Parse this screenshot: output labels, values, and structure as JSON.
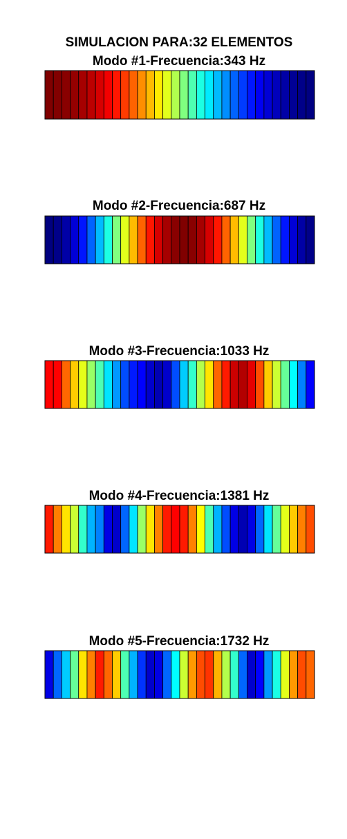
{
  "figure": {
    "title": "SIMULACION PARA:32 ELEMENTOS"
  },
  "chart_data": {
    "type": "heatmap",
    "elements": 32,
    "colormap": "jet",
    "clim": [
      -1,
      1
    ],
    "grid": false,
    "legend": "none",
    "modes": [
      {
        "mode": 1,
        "title": "Modo #1-Frecuencia:343 Hz",
        "frequency_hz": 343,
        "values": [
          1.0,
          0.995,
          0.981,
          0.957,
          0.924,
          0.882,
          0.831,
          0.773,
          0.707,
          0.634,
          0.556,
          0.471,
          0.383,
          0.29,
          0.195,
          0.098,
          0.0,
          -0.098,
          -0.195,
          -0.29,
          -0.383,
          -0.471,
          -0.556,
          -0.634,
          -0.707,
          -0.773,
          -0.831,
          -0.882,
          -0.924,
          -0.957,
          -0.981,
          -0.995
        ]
      },
      {
        "mode": 2,
        "title": "Modo #2-Frecuencia:687 Hz",
        "frequency_hz": 687,
        "values": [
          -1.0,
          -0.981,
          -0.924,
          -0.831,
          -0.707,
          -0.556,
          -0.383,
          -0.195,
          0.0,
          0.195,
          0.383,
          0.556,
          0.707,
          0.831,
          0.924,
          0.981,
          1.0,
          0.981,
          0.924,
          0.831,
          0.707,
          0.556,
          0.383,
          0.195,
          0.0,
          -0.195,
          -0.383,
          -0.556,
          -0.707,
          -0.831,
          -0.924,
          -0.981
        ]
      },
      {
        "mode": 3,
        "title": "Modo #3-Frecuencia:1033 Hz",
        "frequency_hz": 1033,
        "values": [
          0.75,
          0.75,
          0.55,
          0.35,
          0.2,
          0.05,
          -0.1,
          -0.3,
          -0.45,
          -0.6,
          -0.7,
          -0.75,
          -0.85,
          -0.9,
          -0.85,
          -0.6,
          -0.35,
          -0.15,
          0.1,
          0.3,
          0.55,
          0.7,
          0.85,
          0.9,
          0.8,
          0.6,
          0.35,
          0.15,
          -0.05,
          -0.25,
          -0.5,
          -0.75
        ]
      },
      {
        "mode": 4,
        "title": "Modo #4-Frecuencia:1381 Hz",
        "frequency_hz": 1381,
        "values": [
          0.7,
          0.5,
          0.3,
          0.15,
          -0.15,
          -0.4,
          -0.5,
          -0.8,
          -0.85,
          -0.55,
          -0.3,
          0.05,
          0.3,
          0.5,
          0.7,
          0.75,
          0.7,
          0.5,
          0.25,
          -0.1,
          -0.4,
          -0.6,
          -0.8,
          -0.9,
          -0.8,
          -0.55,
          -0.3,
          -0.05,
          0.2,
          0.35,
          0.5,
          0.6
        ]
      },
      {
        "mode": 5,
        "title": "Modo #5-Frecuencia:1732 Hz",
        "frequency_hz": 1732,
        "values": [
          -0.8,
          -0.55,
          -0.35,
          -0.05,
          0.3,
          0.5,
          0.7,
          0.55,
          0.35,
          -0.1,
          -0.4,
          -0.65,
          -0.85,
          -0.8,
          -0.55,
          -0.25,
          0.15,
          0.45,
          0.6,
          0.65,
          0.4,
          0.1,
          -0.15,
          -0.55,
          -0.85,
          -0.75,
          -0.45,
          -0.2,
          0.2,
          0.45,
          0.6,
          0.55
        ]
      }
    ]
  }
}
